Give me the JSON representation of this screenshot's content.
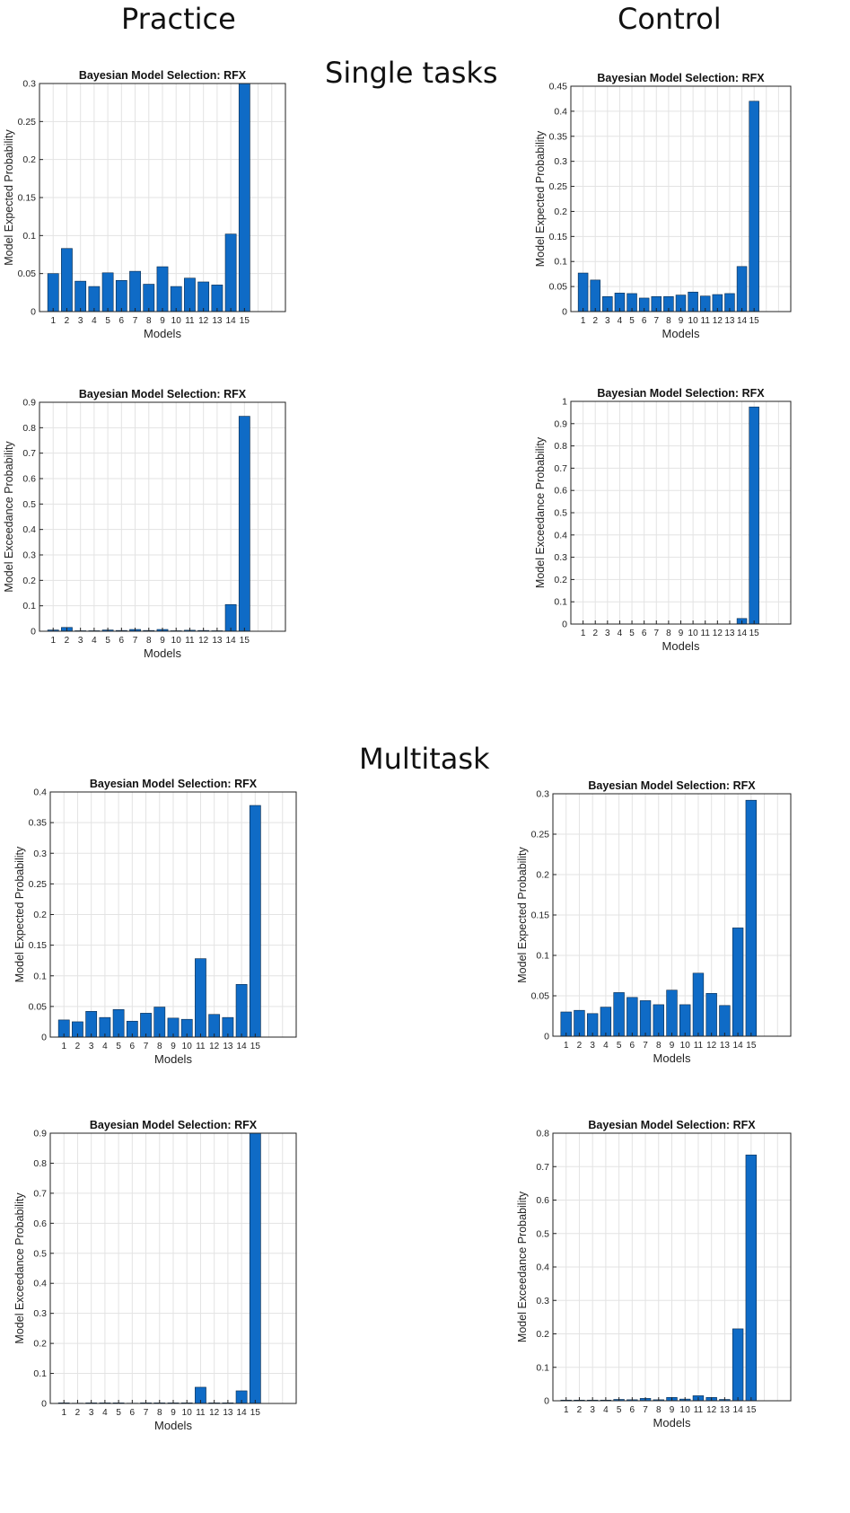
{
  "headings": {
    "practice": "Practice",
    "control": "Control",
    "single_tasks": "Single tasks",
    "multitask": "Multitask"
  },
  "colors": {
    "bar": "#0f6bc6",
    "bar_stroke": "#0a2a4a",
    "grid": "#e3e3e3",
    "axis": "#222222"
  },
  "chart_data": [
    {
      "type": "bar",
      "title": "Bayesian Model Selection: RFX",
      "xlabel": "Models",
      "ylabel": "Model Expected Probability",
      "categories": [
        "1",
        "2",
        "3",
        "4",
        "5",
        "6",
        "7",
        "8",
        "9",
        "10",
        "11",
        "12",
        "13",
        "14",
        "15"
      ],
      "x_max": 18,
      "ylim": [
        0,
        0.3
      ],
      "yticks": [
        0,
        0.05,
        0.1,
        0.15,
        0.2,
        0.25,
        0.3
      ],
      "ytick_labels": [
        "0",
        "0.05",
        "0.1",
        "0.15",
        "0.2",
        "0.25",
        "0.3"
      ],
      "values": [
        0.05,
        0.083,
        0.04,
        0.033,
        0.051,
        0.041,
        0.053,
        0.036,
        0.059,
        0.033,
        0.044,
        0.039,
        0.035,
        0.102,
        0.3
      ],
      "grid": true
    },
    {
      "type": "bar",
      "title": "Bayesian Model Selection: RFX",
      "xlabel": "Models",
      "ylabel": "Model Expected Probability",
      "categories": [
        "1",
        "2",
        "3",
        "4",
        "5",
        "6",
        "7",
        "8",
        "9",
        "10",
        "11",
        "12",
        "13",
        "14",
        "15"
      ],
      "x_max": 18,
      "ylim": [
        0,
        0.45
      ],
      "yticks": [
        0,
        0.05,
        0.1,
        0.15,
        0.2,
        0.25,
        0.3,
        0.35,
        0.4,
        0.45
      ],
      "ytick_labels": [
        "0",
        "0.05",
        "0.1",
        "0.15",
        "0.2",
        "0.25",
        "0.3",
        "0.35",
        "0.4",
        "0.45"
      ],
      "values": [
        0.077,
        0.063,
        0.03,
        0.037,
        0.036,
        0.027,
        0.03,
        0.03,
        0.033,
        0.039,
        0.031,
        0.034,
        0.036,
        0.09,
        0.42
      ],
      "grid": true
    },
    {
      "type": "bar",
      "title": "Bayesian Model Selection: RFX",
      "xlabel": "Models",
      "ylabel": "Model Exceedance Probability",
      "categories": [
        "1",
        "2",
        "3",
        "4",
        "5",
        "6",
        "7",
        "8",
        "9",
        "10",
        "11",
        "12",
        "13",
        "14",
        "15"
      ],
      "x_max": 18,
      "ylim": [
        0,
        0.9
      ],
      "yticks": [
        0,
        0.1,
        0.2,
        0.3,
        0.4,
        0.5,
        0.6,
        0.7,
        0.8,
        0.9
      ],
      "ytick_labels": [
        "0",
        "0.1",
        "0.2",
        "0.3",
        "0.4",
        "0.5",
        "0.6",
        "0.7",
        "0.8",
        "0.9"
      ],
      "values": [
        0.005,
        0.015,
        0.002,
        0.002,
        0.005,
        0.003,
        0.007,
        0.003,
        0.007,
        0.002,
        0.004,
        0.003,
        0.002,
        0.105,
        0.845
      ],
      "grid": true
    },
    {
      "type": "bar",
      "title": "Bayesian Model Selection: RFX",
      "xlabel": "Models",
      "ylabel": "Model Exceedance Probability",
      "categories": [
        "1",
        "2",
        "3",
        "4",
        "5",
        "6",
        "7",
        "8",
        "9",
        "10",
        "11",
        "12",
        "13",
        "14",
        "15"
      ],
      "x_max": 18,
      "ylim": [
        0,
        1
      ],
      "yticks": [
        0,
        0.1,
        0.2,
        0.3,
        0.4,
        0.5,
        0.6,
        0.7,
        0.8,
        0.9,
        1
      ],
      "ytick_labels": [
        "0",
        "0.1",
        "0.2",
        "0.3",
        "0.4",
        "0.5",
        "0.6",
        "0.7",
        "0.8",
        "0.9",
        "1"
      ],
      "values": [
        0,
        0,
        0,
        0,
        0,
        0,
        0,
        0,
        0,
        0,
        0,
        0,
        0,
        0.025,
        0.975
      ],
      "grid": true
    },
    {
      "type": "bar",
      "title": "Bayesian Model Selection: RFX",
      "xlabel": "Models",
      "ylabel": "Model Expected Probability",
      "categories": [
        "1",
        "2",
        "3",
        "4",
        "5",
        "6",
        "7",
        "8",
        "9",
        "10",
        "11",
        "12",
        "13",
        "14",
        "15"
      ],
      "x_max": 18,
      "ylim": [
        0,
        0.4
      ],
      "yticks": [
        0,
        0.05,
        0.1,
        0.15,
        0.2,
        0.25,
        0.3,
        0.35,
        0.4
      ],
      "ytick_labels": [
        "0",
        "0.05",
        "0.1",
        "0.15",
        "0.2",
        "0.25",
        "0.3",
        "0.35",
        "0.4"
      ],
      "values": [
        0.028,
        0.025,
        0.042,
        0.032,
        0.045,
        0.026,
        0.039,
        0.049,
        0.031,
        0.029,
        0.128,
        0.037,
        0.032,
        0.086,
        0.378
      ],
      "grid": true
    },
    {
      "type": "bar",
      "title": "Bayesian Model Selection: RFX",
      "xlabel": "Models",
      "ylabel": "Model Expected Probability",
      "categories": [
        "1",
        "2",
        "3",
        "4",
        "5",
        "6",
        "7",
        "8",
        "9",
        "10",
        "11",
        "12",
        "13",
        "14",
        "15"
      ],
      "x_max": 18,
      "ylim": [
        0,
        0.3
      ],
      "yticks": [
        0,
        0.05,
        0.1,
        0.15,
        0.2,
        0.25,
        0.3
      ],
      "ytick_labels": [
        "0",
        "0.05",
        "0.1",
        "0.15",
        "0.2",
        "0.25",
        "0.3"
      ],
      "values": [
        0.03,
        0.032,
        0.028,
        0.036,
        0.054,
        0.048,
        0.044,
        0.039,
        0.057,
        0.039,
        0.078,
        0.053,
        0.038,
        0.134,
        0.292
      ],
      "grid": true
    },
    {
      "type": "bar",
      "title": "Bayesian Model Selection: RFX",
      "xlabel": "Models",
      "ylabel": "Model Exceedance Probability",
      "categories": [
        "1",
        "2",
        "3",
        "4",
        "5",
        "6",
        "7",
        "8",
        "9",
        "10",
        "11",
        "12",
        "13",
        "14",
        "15"
      ],
      "x_max": 18,
      "ylim": [
        0,
        0.9
      ],
      "yticks": [
        0,
        0.1,
        0.2,
        0.3,
        0.4,
        0.5,
        0.6,
        0.7,
        0.8,
        0.9
      ],
      "ytick_labels": [
        "0",
        "0.1",
        "0.2",
        "0.3",
        "0.4",
        "0.5",
        "0.6",
        "0.7",
        "0.8",
        "0.9"
      ],
      "values": [
        0.002,
        0.001,
        0.002,
        0.002,
        0.002,
        0.001,
        0.002,
        0.002,
        0.002,
        0.002,
        0.054,
        0.002,
        0.002,
        0.042,
        0.9
      ],
      "grid": true
    },
    {
      "type": "bar",
      "title": "Bayesian Model Selection: RFX",
      "xlabel": "Models",
      "ylabel": "Model Exceedance Probability",
      "categories": [
        "1",
        "2",
        "3",
        "4",
        "5",
        "6",
        "7",
        "8",
        "9",
        "10",
        "11",
        "12",
        "13",
        "14",
        "15"
      ],
      "x_max": 18,
      "ylim": [
        0,
        0.8
      ],
      "yticks": [
        0,
        0.1,
        0.2,
        0.3,
        0.4,
        0.5,
        0.6,
        0.7,
        0.8
      ],
      "ytick_labels": [
        "0",
        "0.1",
        "0.2",
        "0.3",
        "0.4",
        "0.5",
        "0.6",
        "0.7",
        "0.8"
      ],
      "values": [
        0.002,
        0.002,
        0.002,
        0.002,
        0.004,
        0.003,
        0.007,
        0.003,
        0.01,
        0.005,
        0.015,
        0.01,
        0.004,
        0.215,
        0.735
      ],
      "grid": true
    }
  ]
}
